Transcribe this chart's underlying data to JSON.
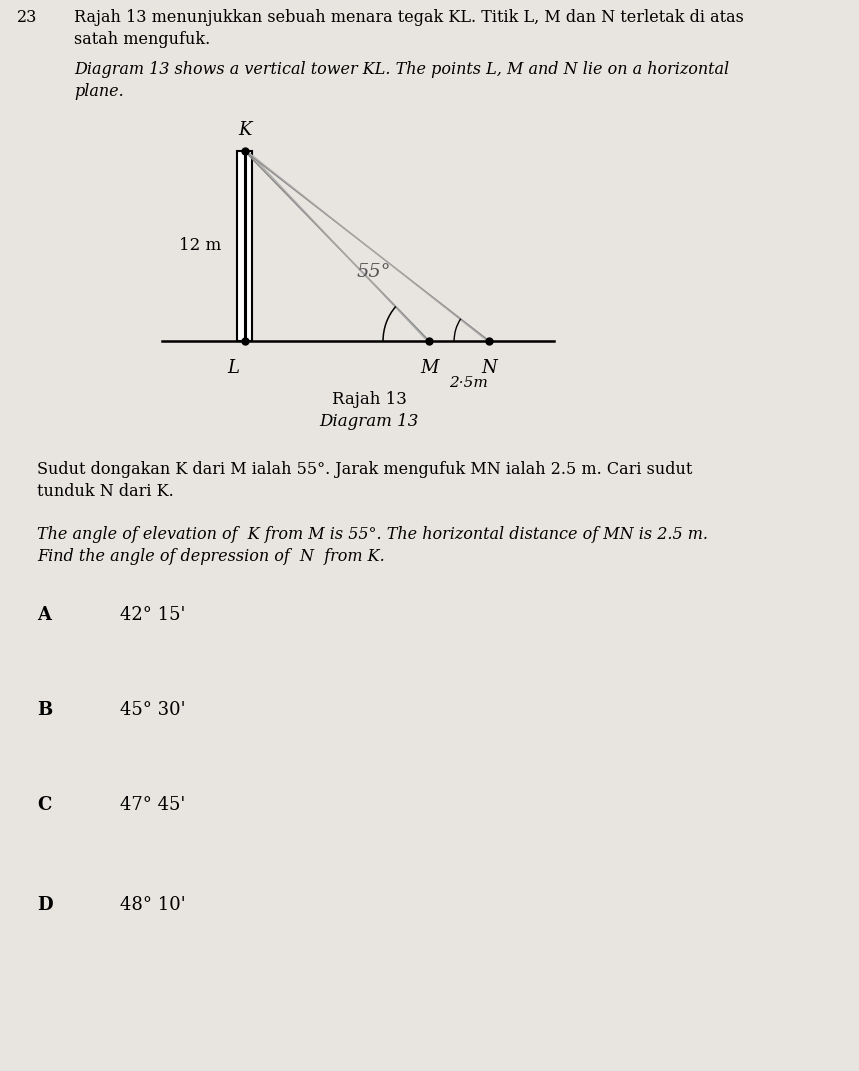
{
  "bg_color": "#d8d4cf",
  "page_bg": "#e8e4df",
  "question_number": "23",
  "malay_text_1": "Rajah 13 menunjukkan sebuah menara tegak KL. Titik L, M dan N terletak di atas",
  "malay_text_2": "satah mengufuk.",
  "english_text_1": "Diagram 13 shows a vertical tower KL. The points L, M and N lie on a horizontal",
  "english_text_2": "plane.",
  "diagram_label": "Rajah 13",
  "diagram_label_en": "Diagram 13",
  "tower_height_label": "12 m",
  "angle_label": "55°",
  "mn_label": "2·5m",
  "point_K": "K",
  "point_L": "L",
  "point_M": "M",
  "point_N": "N",
  "malay_question_1": "Sudut dongakan K dari M ialah 55°. Jarak mengufuk MN ialah 2.5 m. Cari sudut",
  "malay_question_2": "tunduk N dari K.",
  "english_question_1": "The angle of elevation of  K from M is 55°. The horizontal distance of MN is 2.5 m.",
  "english_question_2": "Find the angle of depression of  N  from K.",
  "options": [
    {
      "letter": "A",
      "answer": "42° 15'"
    },
    {
      "letter": "B",
      "answer": "45° 30'"
    },
    {
      "letter": "C",
      "answer": "47° 45'"
    },
    {
      "letter": "D",
      "answer": "48° 10'"
    }
  ],
  "font_size_body": 11.5,
  "font_size_options": 13
}
